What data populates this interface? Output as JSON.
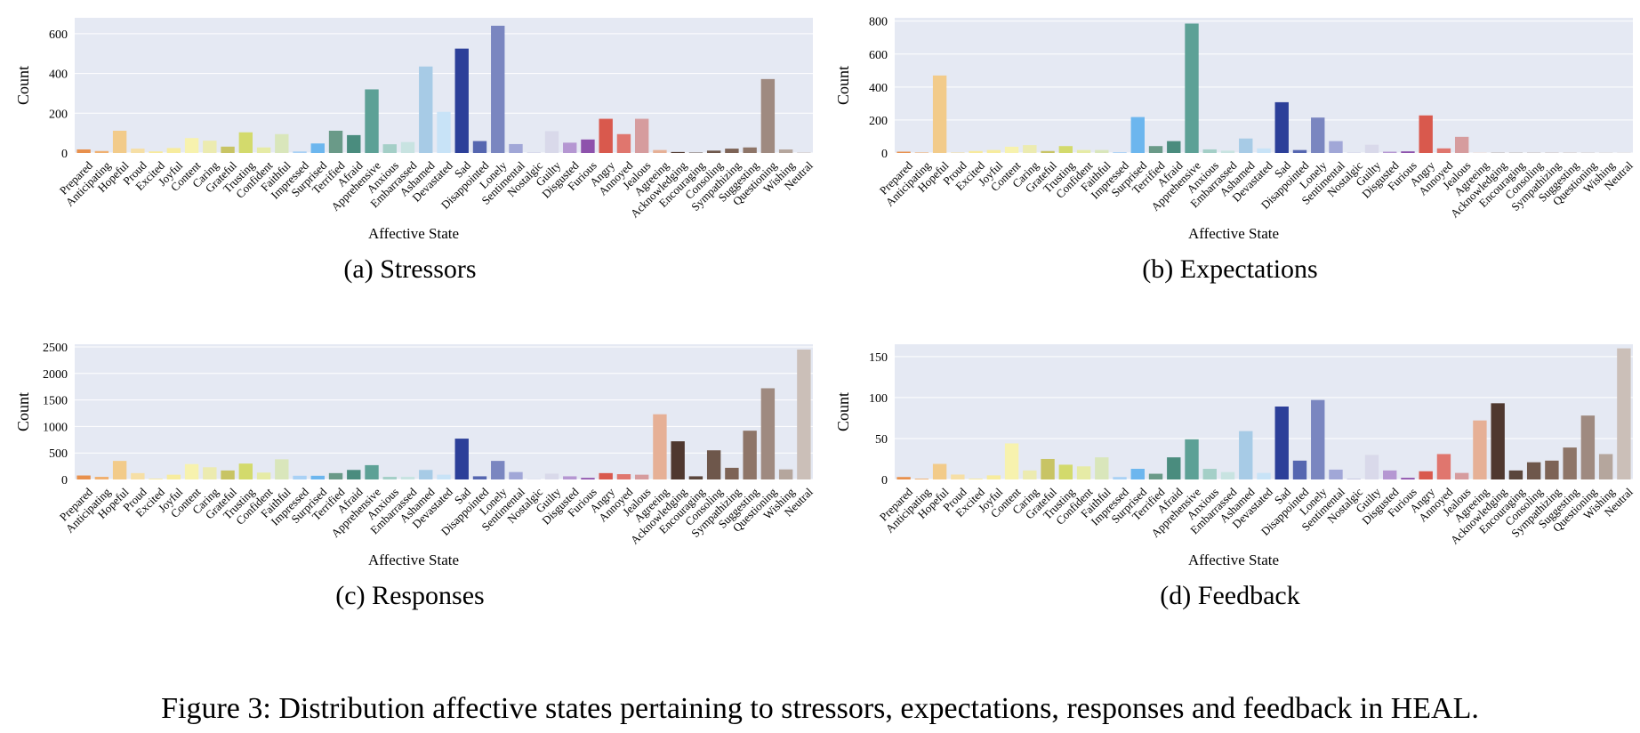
{
  "figure_caption": "Figure 3: Distribution affective states pertaining to stressors, expectations, responses and feedback in HEAL.",
  "colors": {
    "plot_background": "#e5e9f3",
    "gridline": "#ffffff",
    "bars": [
      "#e8904c",
      "#f0b070",
      "#f2cb8a",
      "#f6dfa6",
      "#f8ea9c",
      "#f7ec9e",
      "#f7f2ae",
      "#ecebb0",
      "#c8c464",
      "#d3da6c",
      "#e6eba6",
      "#d9e6bb",
      "#a9d1f5",
      "#6cb6ee",
      "#6a9a88",
      "#4a8c7e",
      "#5da196",
      "#a4cfc7",
      "#c8e3e1",
      "#a7cbe6",
      "#c8e3f7",
      "#2c3f99",
      "#5566b0",
      "#7a86c0",
      "#a1a7d7",
      "#c6c6e0",
      "#d9d9ea",
      "#b597d2",
      "#8e52ac",
      "#d9594d",
      "#e0766e",
      "#d69c9e",
      "#e6b096",
      "#4f382f",
      "#5a463c",
      "#6e574b",
      "#7d6356",
      "#8e7568",
      "#9f8a80",
      "#b5a69d",
      "#cbbfb8",
      "#dedad7"
    ]
  },
  "figure_caption_show": true,
  "chart_data": [
    {
      "type": "bar",
      "caption": "(a) Stressors",
      "xlabel": "Affective State",
      "ylabel": "Count",
      "ylim": [
        0,
        680
      ],
      "yticks": [
        0,
        200,
        400,
        600
      ],
      "grid": true,
      "categories": [
        "Prepared",
        "Anticipating",
        "Hopeful",
        "Proud",
        "Excited",
        "Joyful",
        "Content",
        "Caring",
        "Grateful",
        "Trusting",
        "Confident",
        "Faithful",
        "Impressed",
        "Surprised",
        "Terrified",
        "Afraid",
        "Apprehensive",
        "Anxious",
        "Embarrassed",
        "Ashamed",
        "Devastated",
        "Sad",
        "Disappointed",
        "Lonely",
        "Sentimental",
        "Nostalgic",
        "Guilty",
        "Disgusted",
        "Furious",
        "Angry",
        "Annoyed",
        "Jealous",
        "Agreeing",
        "Acknowledging",
        "Encouraging",
        "Consoling",
        "Sympathizing",
        "Suggesting",
        "Questioning",
        "Wishing",
        "Neutral"
      ],
      "values": [
        18,
        10,
        112,
        22,
        8,
        25,
        75,
        62,
        32,
        104,
        28,
        95,
        8,
        48,
        112,
        90,
        320,
        44,
        55,
        435,
        207,
        525,
        60,
        640,
        45,
        2,
        110,
        52,
        68,
        172,
        95,
        172,
        15,
        5,
        2,
        12,
        22,
        28,
        372,
        18,
        2
      ]
    },
    {
      "type": "bar",
      "caption": "(b) Expectations",
      "xlabel": "Affective State",
      "ylabel": "Count",
      "ylim": [
        0,
        820
      ],
      "yticks": [
        0,
        200,
        400,
        600,
        800
      ],
      "grid": true,
      "categories": [
        "Prepared",
        "Anticipating",
        "Hopeful",
        "Proud",
        "Excited",
        "Joyful",
        "Content",
        "Caring",
        "Grateful",
        "Trusting",
        "Confident",
        "Faithful",
        "Impressed",
        "Surprised",
        "Terrified",
        "Afraid",
        "Apprehensive",
        "Anxious",
        "Embarrassed",
        "Ashamed",
        "Devastated",
        "Sad",
        "Disappointed",
        "Lonely",
        "Sentimental",
        "Nostalgic",
        "Guilty",
        "Disgusted",
        "Furious",
        "Angry",
        "Annoyed",
        "Jealous",
        "Agreeing",
        "Acknowledging",
        "Encouraging",
        "Consoling",
        "Sympathizing",
        "Suggesting",
        "Questioning",
        "Wishing",
        "Neutral"
      ],
      "values": [
        8,
        3,
        470,
        3,
        12,
        18,
        38,
        48,
        12,
        42,
        18,
        18,
        5,
        218,
        42,
        72,
        785,
        22,
        14,
        88,
        28,
        308,
        18,
        215,
        72,
        2,
        50,
        8,
        10,
        228,
        28,
        98,
        1,
        1,
        1,
        1,
        1,
        1,
        1,
        1,
        1
      ]
    },
    {
      "type": "bar",
      "caption": "(c) Responses",
      "xlabel": "Affective State",
      "ylabel": "Count",
      "ylim": [
        0,
        2550
      ],
      "yticks": [
        0,
        500,
        1000,
        1500,
        2000,
        2500
      ],
      "grid": true,
      "categories": [
        "Prepared",
        "Anticipating",
        "Hopeful",
        "Proud",
        "Excited",
        "Joyful",
        "Content",
        "Caring",
        "Grateful",
        "Trusting",
        "Confident",
        "Faithful",
        "Impressed",
        "Surprised",
        "Terrified",
        "Afraid",
        "Apprehensive",
        "Anxious",
        "Embarrassed",
        "Ashamed",
        "Devastated",
        "Sad",
        "Disappointed",
        "Lonely",
        "Sentimental",
        "Nostalgic",
        "Guilty",
        "Disgusted",
        "Furious",
        "Angry",
        "Annoyed",
        "Jealous",
        "Agreeing",
        "Acknowledging",
        "Encouraging",
        "Consoling",
        "Sympathizing",
        "Suggesting",
        "Questioning",
        "Wishing",
        "Neutral"
      ],
      "values": [
        75,
        50,
        350,
        120,
        15,
        90,
        290,
        230,
        170,
        300,
        130,
        380,
        70,
        70,
        120,
        180,
        270,
        50,
        50,
        180,
        90,
        770,
        60,
        350,
        140,
        5,
        110,
        60,
        30,
        120,
        100,
        90,
        1230,
        720,
        60,
        550,
        220,
        920,
        1720,
        190,
        2450
      ]
    },
    {
      "type": "bar",
      "caption": "(d) Feedback",
      "xlabel": "Affective State",
      "ylabel": "Count",
      "ylim": [
        0,
        165
      ],
      "yticks": [
        0,
        50,
        100,
        150
      ],
      "grid": true,
      "categories": [
        "Prepared",
        "Anticipating",
        "Hopeful",
        "Proud",
        "Excited",
        "Joyful",
        "Content",
        "Caring",
        "Grateful",
        "Trusting",
        "Confident",
        "Faithful",
        "Impressed",
        "Surprised",
        "Terrified",
        "Afraid",
        "Apprehensive",
        "Anxious",
        "Embarrassed",
        "Ashamed",
        "Devastated",
        "Sad",
        "Disappointed",
        "Lonely",
        "Sentimental",
        "Nostalgic",
        "Guilty",
        "Disgusted",
        "Furious",
        "Angry",
        "Annoyed",
        "Jealous",
        "Agreeing",
        "Acknowledging",
        "Encouraging",
        "Consoling",
        "Sympathizing",
        "Suggesting",
        "Questioning",
        "Wishing",
        "Neutral"
      ],
      "values": [
        3,
        1,
        19,
        6,
        1,
        5,
        44,
        11,
        25,
        18,
        16,
        27,
        3,
        13,
        7,
        27,
        49,
        13,
        9,
        59,
        8,
        89,
        23,
        97,
        12,
        1,
        30,
        11,
        2,
        10,
        31,
        8,
        72,
        93,
        11,
        21,
        23,
        39,
        78,
        31,
        160
      ]
    }
  ]
}
